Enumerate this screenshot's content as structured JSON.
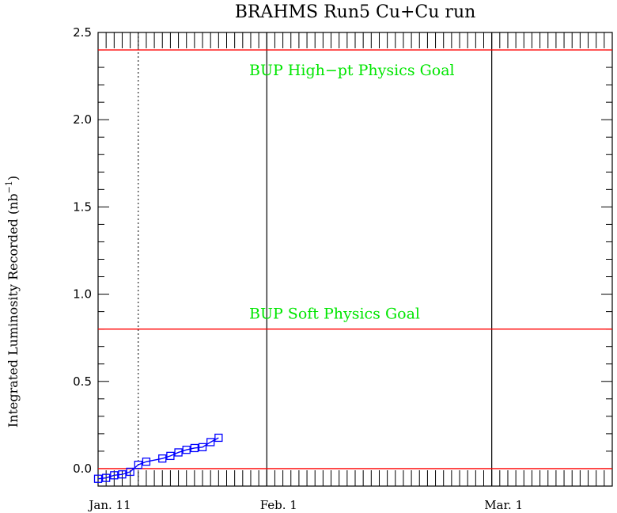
{
  "chart_data": {
    "type": "line",
    "title": "BRAHMS Run5 Cu+Cu run",
    "ylabel": "Integrated Luminosity Recorded (nb",
    "ylabel_unit_sup": "−1",
    "ylabel_close": ")",
    "xlabel": "",
    "x_axis": "days since Jan. 11",
    "xlim": [
      0,
      64
    ],
    "ylim": [
      -0.1,
      2.5
    ],
    "grid": false,
    "y_ticks": [
      {
        "value": 0.0,
        "label": "0.0"
      },
      {
        "value": 0.5,
        "label": "0.5"
      },
      {
        "value": 1.0,
        "label": "1.0"
      },
      {
        "value": 1.5,
        "label": "1.5"
      },
      {
        "value": 2.0,
        "label": "2.0"
      },
      {
        "value": 2.5,
        "label": "2.5"
      }
    ],
    "x_ticks": [
      {
        "value": 0,
        "label": "Jan. 11"
      },
      {
        "value": 21,
        "label": "Feb. 1"
      },
      {
        "value": 49,
        "label": "Mar. 1"
      }
    ],
    "vertical_lines": [
      {
        "x": 5,
        "style": "dotted",
        "color": "#000000"
      },
      {
        "x": 21,
        "style": "solid",
        "color": "#000000"
      },
      {
        "x": 49,
        "style": "solid",
        "color": "#000000"
      }
    ],
    "goals": [
      {
        "label": "BUP High−pt Physics Goal",
        "value": 2.4,
        "color": "#ff0000",
        "text_color": "#00e600"
      },
      {
        "label": "BUP Soft Physics Goal",
        "value": 0.8,
        "color": "#ff0000",
        "text_color": "#00e600"
      },
      {
        "label": "",
        "value": 0.0,
        "color": "#ff0000"
      }
    ],
    "series": [
      {
        "color": "#0000ff",
        "marker": "square",
        "x": [
          0,
          1,
          2,
          3,
          4,
          5,
          6,
          8,
          9,
          10,
          11,
          12,
          13,
          14,
          15
        ],
        "y": [
          -0.058,
          -0.053,
          -0.038,
          -0.033,
          -0.018,
          0.022,
          0.04,
          0.058,
          0.073,
          0.093,
          0.108,
          0.118,
          0.123,
          0.152,
          0.177
        ]
      }
    ]
  }
}
